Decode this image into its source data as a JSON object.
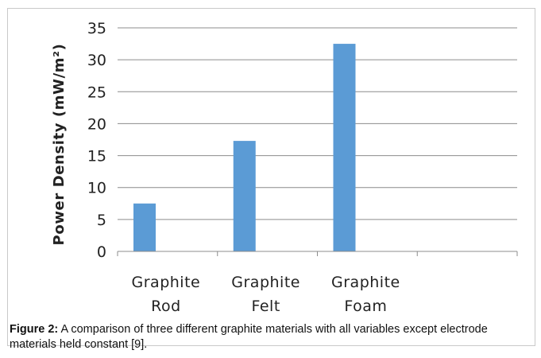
{
  "chart_data": {
    "type": "bar",
    "categories": [
      [
        "Graphite",
        "Rod"
      ],
      [
        "Graphite",
        "Felt"
      ],
      [
        "Graphite",
        "Foam"
      ],
      [
        "",
        ""
      ]
    ],
    "values": [
      7.5,
      17.3,
      32.5,
      null
    ],
    "ylabel": "Power Density (mW/m²)",
    "ylim": [
      0,
      35
    ],
    "yticks": [
      0,
      5,
      10,
      15,
      20,
      25,
      30,
      35
    ],
    "grid": true,
    "legend": "none",
    "bar_color": "#5b9bd5"
  },
  "caption": {
    "label": "Figure 2:",
    "text": " A comparison of three different graphite materials with all variables except electrode materials held constant [9]."
  }
}
